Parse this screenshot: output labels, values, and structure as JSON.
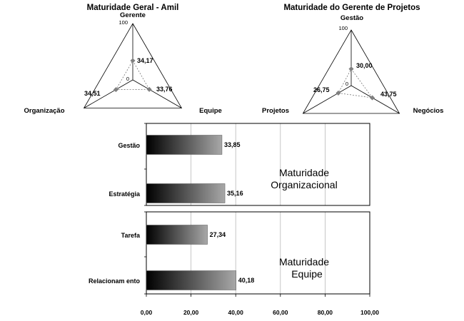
{
  "colors": {
    "grid": "#b8b8b8",
    "axis": "#000000",
    "bar_dark": "#000000",
    "bar_light": "#a8a8a8",
    "radar_point": "#808080"
  },
  "chart_data": [
    {
      "type": "radar",
      "title": "Maturidade Geral - Amil",
      "axes": [
        "Gerente",
        "Equipe",
        "Organização"
      ],
      "values": [
        34.17,
        33.76,
        34.51
      ],
      "value_labels": [
        "34,17",
        "33,76",
        "34,51"
      ],
      "range": [
        0,
        100
      ],
      "tick_labels": [
        "0",
        "100"
      ]
    },
    {
      "type": "radar",
      "title": "Maturidade do Gerente de Projetos",
      "axes": [
        "Gestão",
        "Negócios",
        "Projetos"
      ],
      "values": [
        30.0,
        43.75,
        26.75
      ],
      "value_labels": [
        "30,00",
        "43,75",
        "26,75"
      ],
      "range": [
        0,
        100
      ],
      "tick_labels": [
        "0",
        "100"
      ]
    },
    {
      "type": "bar",
      "orientation": "horizontal",
      "xlim": [
        0,
        100
      ],
      "x_tick_labels": [
        "0,00",
        "20,00",
        "40,00",
        "60,00",
        "80,00",
        "100,00"
      ],
      "groups": [
        {
          "annotation": [
            "Maturidade",
            "Organizacional"
          ],
          "categories": [
            "Gestão",
            "Estratégia"
          ],
          "values": [
            33.85,
            35.16
          ],
          "value_labels": [
            "33,85",
            "35,16"
          ]
        },
        {
          "annotation": [
            "Maturidade",
            "Equipe"
          ],
          "categories": [
            "Tarefa",
            "Relacionam ento"
          ],
          "values": [
            27.34,
            40.18
          ],
          "value_labels": [
            "27,34",
            "40,18"
          ]
        }
      ]
    }
  ]
}
